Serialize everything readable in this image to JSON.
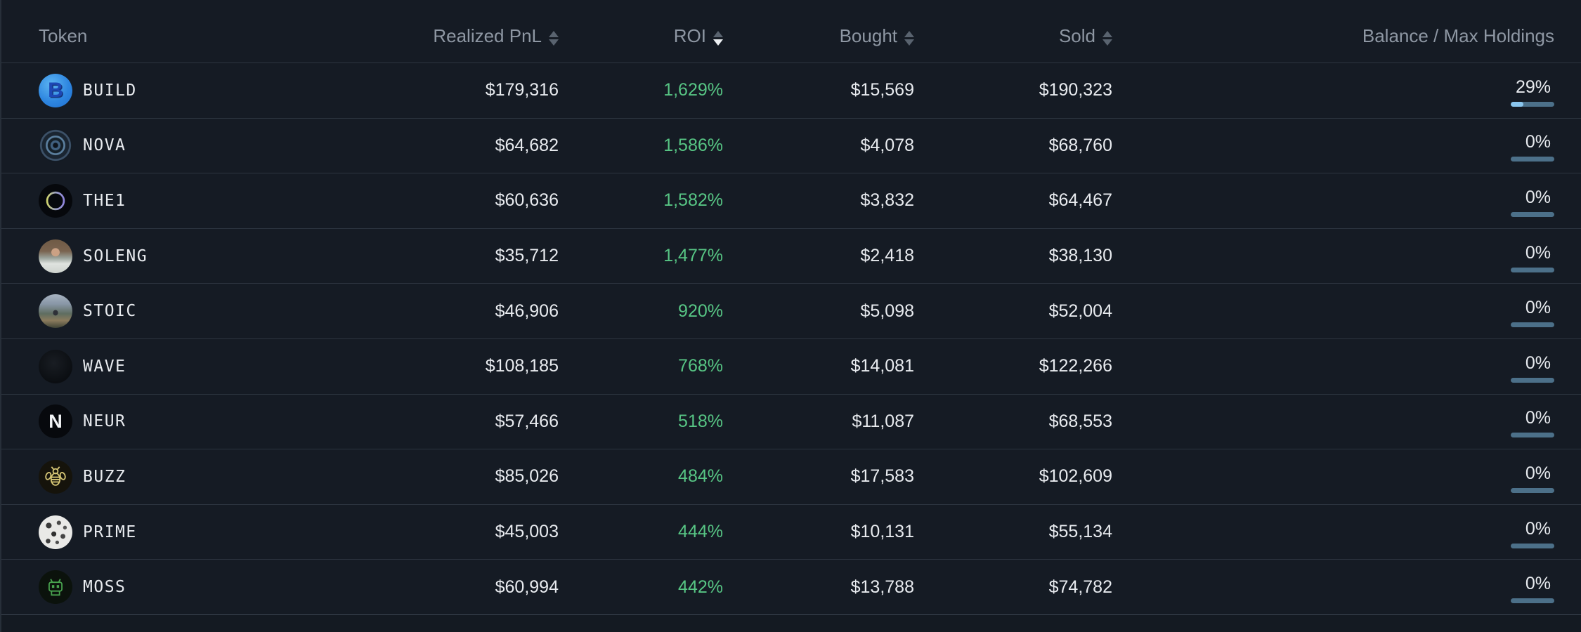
{
  "colors": {
    "background": "#151b24",
    "row_text": "#e8ebef",
    "header_text": "#8e97a3",
    "roi_positive": "#57c584",
    "balance_bar_fill": "#8ac6ee",
    "balance_bar_track": "#4c7089"
  },
  "table": {
    "columns": [
      {
        "key": "token",
        "label": "Token",
        "sortable": false,
        "sort": "none"
      },
      {
        "key": "realized_pnl",
        "label": "Realized PnL",
        "sortable": true,
        "sort": "none"
      },
      {
        "key": "roi",
        "label": "ROI",
        "sortable": true,
        "sort": "desc"
      },
      {
        "key": "bought",
        "label": "Bought",
        "sortable": true,
        "sort": "none"
      },
      {
        "key": "sold",
        "label": "Sold",
        "sortable": true,
        "sort": "none"
      },
      {
        "key": "balance",
        "label": "Balance / Max Holdings",
        "sortable": false,
        "sort": "none"
      }
    ],
    "rows": [
      {
        "token": "BUILD",
        "icon": "build-token-icon",
        "icon_glyph": "B",
        "realized_pnl": "$179,316",
        "roi": "1,629%",
        "bought": "$15,569",
        "sold": "$190,323",
        "balance_pct_label": "29%",
        "balance_pct": 29
      },
      {
        "token": "NOVA",
        "icon": "nova-token-icon",
        "icon_glyph": "",
        "realized_pnl": "$64,682",
        "roi": "1,586%",
        "bought": "$4,078",
        "sold": "$68,760",
        "balance_pct_label": "0%",
        "balance_pct": 0
      },
      {
        "token": "THE1",
        "icon": "the1-token-icon",
        "icon_glyph": "",
        "realized_pnl": "$60,636",
        "roi": "1,582%",
        "bought": "$3,832",
        "sold": "$64,467",
        "balance_pct_label": "0%",
        "balance_pct": 0
      },
      {
        "token": "SOLENG",
        "icon": "soleng-token-icon",
        "icon_glyph": "",
        "realized_pnl": "$35,712",
        "roi": "1,477%",
        "bought": "$2,418",
        "sold": "$38,130",
        "balance_pct_label": "0%",
        "balance_pct": 0
      },
      {
        "token": "STOIC",
        "icon": "stoic-token-icon",
        "icon_glyph": "",
        "realized_pnl": "$46,906",
        "roi": "920%",
        "bought": "$5,098",
        "sold": "$52,004",
        "balance_pct_label": "0%",
        "balance_pct": 0
      },
      {
        "token": "WAVE",
        "icon": "wave-token-icon",
        "icon_glyph": "",
        "realized_pnl": "$108,185",
        "roi": "768%",
        "bought": "$14,081",
        "sold": "$122,266",
        "balance_pct_label": "0%",
        "balance_pct": 0
      },
      {
        "token": "NEUR",
        "icon": "neur-token-icon",
        "icon_glyph": "N",
        "realized_pnl": "$57,466",
        "roi": "518%",
        "bought": "$11,087",
        "sold": "$68,553",
        "balance_pct_label": "0%",
        "balance_pct": 0
      },
      {
        "token": "BUZZ",
        "icon": "buzz-token-icon",
        "icon_glyph": "",
        "realized_pnl": "$85,026",
        "roi": "484%",
        "bought": "$17,583",
        "sold": "$102,609",
        "balance_pct_label": "0%",
        "balance_pct": 0
      },
      {
        "token": "PRIME",
        "icon": "prime-token-icon",
        "icon_glyph": "",
        "realized_pnl": "$45,003",
        "roi": "444%",
        "bought": "$10,131",
        "sold": "$55,134",
        "balance_pct_label": "0%",
        "balance_pct": 0
      },
      {
        "token": "MOSS",
        "icon": "moss-token-icon",
        "icon_glyph": "",
        "realized_pnl": "$60,994",
        "roi": "442%",
        "bought": "$13,788",
        "sold": "$74,782",
        "balance_pct_label": "0%",
        "balance_pct": 0
      }
    ]
  }
}
